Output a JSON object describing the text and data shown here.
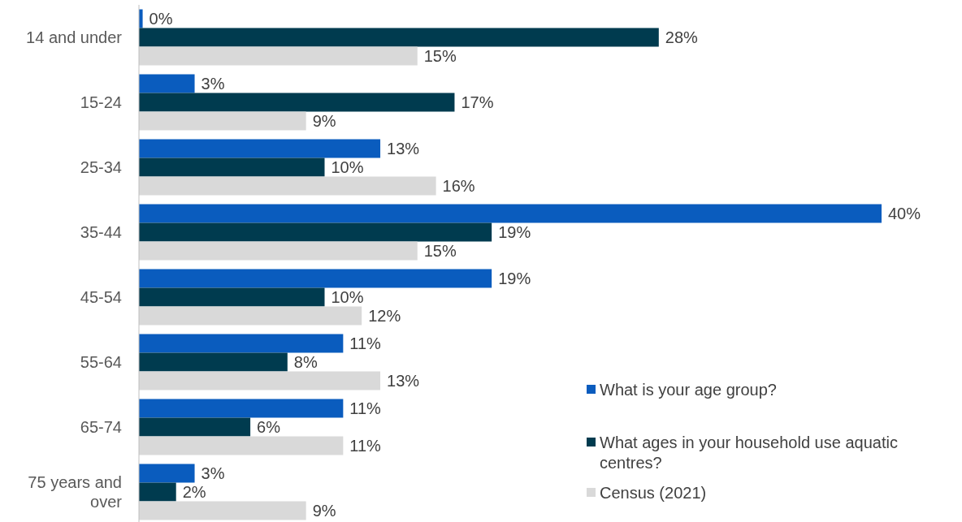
{
  "chart_data": {
    "type": "bar",
    "orientation": "horizontal",
    "categories": [
      "14 and under",
      "15-24",
      "25-34",
      "35-44",
      "45-54",
      "55-64",
      "65-74",
      "75 years and over"
    ],
    "xlim": [
      0,
      40
    ],
    "tick_labels": "y",
    "legend": "bottom right",
    "series": [
      {
        "name": "What is your age group?",
        "color": "#0a5cbe",
        "values": [
          0.2,
          3,
          13,
          40,
          19,
          11,
          11,
          3
        ],
        "value_labels": [
          "0%",
          "3%",
          "13%",
          "40%",
          "19%",
          "11%",
          "11%",
          "3%"
        ]
      },
      {
        "name": "What ages in your household use aquatic centres?",
        "color": "#003b4f",
        "values": [
          28,
          17,
          10,
          19,
          10,
          8,
          6,
          2
        ],
        "value_labels": [
          "28%",
          "17%",
          "10%",
          "19%",
          "10%",
          "8%",
          "6%",
          "2%"
        ]
      },
      {
        "name": "Census (2021)",
        "color": "#d9d9d9",
        "values": [
          15,
          9,
          16,
          15,
          12,
          13,
          11,
          9
        ],
        "value_labels": [
          "15%",
          "9%",
          "16%",
          "15%",
          "12%",
          "13%",
          "11%",
          "9%"
        ]
      }
    ]
  }
}
